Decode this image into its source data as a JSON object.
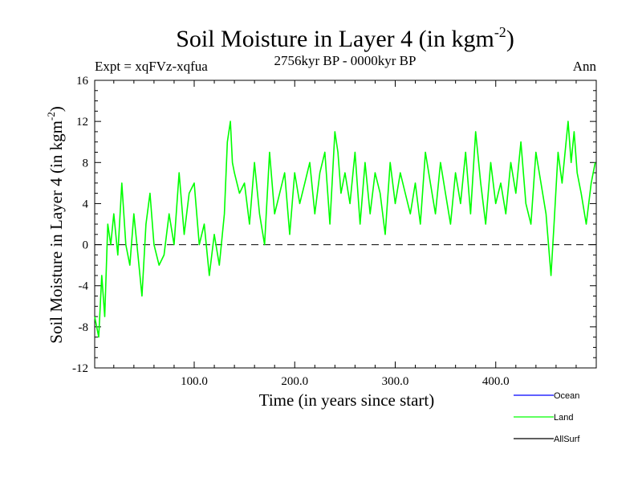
{
  "chart_data": {
    "type": "line",
    "title": "Soil Moisture in Layer 4 (in kgm",
    "title_sup": "-2",
    "title_close": ")",
    "subtitle_left": "Expt = xqFVz-xqfua",
    "subtitle_center": "2756kyr BP - 0000kyr BP",
    "subtitle_right": "Ann",
    "xlabel": "Time (in years since start)",
    "ylabel": "Soil Moisture in Layer 4 (in kgm",
    "ylabel_sup": "-2",
    "ylabel_close": ")",
    "xlim": [
      1,
      500
    ],
    "ylim": [
      -12,
      16
    ],
    "x_ticks": [
      100,
      200,
      300,
      400
    ],
    "x_tick_labels": [
      "100.0",
      "200.0",
      "300.0",
      "400.0"
    ],
    "y_ticks": [
      -12,
      -8,
      -4,
      0,
      4,
      8,
      12,
      16
    ],
    "y_tick_labels": [
      "-12",
      "-8",
      "-4",
      "0",
      "4",
      "8",
      "12",
      "16"
    ],
    "zero_line": 0,
    "series": [
      {
        "name": "Ocean",
        "color": "#0000ff",
        "values": []
      },
      {
        "name": "Land",
        "color": "#00ff00",
        "x": [
          1,
          5,
          8,
          11,
          14,
          17,
          20,
          24,
          28,
          32,
          36,
          40,
          44,
          48,
          52,
          56,
          60,
          65,
          70,
          75,
          80,
          85,
          90,
          95,
          100,
          105,
          110,
          115,
          120,
          125,
          130,
          133,
          136,
          138,
          140,
          145,
          150,
          155,
          160,
          165,
          170,
          175,
          180,
          185,
          190,
          195,
          200,
          205,
          210,
          215,
          220,
          225,
          230,
          235,
          240,
          243,
          246,
          250,
          255,
          260,
          265,
          270,
          275,
          280,
          285,
          290,
          295,
          300,
          305,
          310,
          315,
          320,
          325,
          330,
          335,
          340,
          345,
          350,
          355,
          360,
          365,
          370,
          375,
          380,
          385,
          390,
          395,
          400,
          405,
          410,
          415,
          420,
          425,
          430,
          435,
          440,
          445,
          450,
          455,
          458,
          462,
          466,
          470,
          472,
          475,
          478,
          481,
          485,
          490,
          495,
          499
        ],
        "values": [
          -7,
          -9,
          -3,
          -7,
          2,
          0,
          3,
          -1,
          6,
          0,
          -2,
          3,
          -1,
          -5,
          2,
          5,
          0,
          -2,
          -1,
          3,
          0,
          7,
          1,
          5,
          6,
          0,
          2,
          -3,
          1,
          -2,
          3,
          10,
          12,
          8,
          7,
          5,
          6,
          2,
          8,
          3,
          0,
          9,
          3,
          5,
          7,
          1,
          7,
          4,
          6,
          8,
          3,
          7,
          9,
          2,
          11,
          9,
          5,
          7,
          4,
          9,
          2,
          8,
          3,
          7,
          5,
          1,
          8,
          4,
          7,
          5,
          3,
          6,
          2,
          9,
          6,
          3,
          8,
          5,
          2,
          7,
          4,
          9,
          3,
          11,
          6,
          2,
          8,
          4,
          6,
          3,
          8,
          5,
          10,
          4,
          2,
          9,
          6,
          3,
          -3,
          2,
          9,
          6,
          10,
          12,
          8,
          11,
          7,
          5,
          2,
          6,
          8
        ]
      },
      {
        "name": "AllSurf",
        "color": "#000000",
        "values": []
      }
    ],
    "legend": [
      {
        "label": "Ocean",
        "color": "#0000ff"
      },
      {
        "label": "Land",
        "color": "#00ff00"
      },
      {
        "label": "AllSurf",
        "color": "#000000"
      }
    ],
    "legend_position": "bottom-right"
  }
}
